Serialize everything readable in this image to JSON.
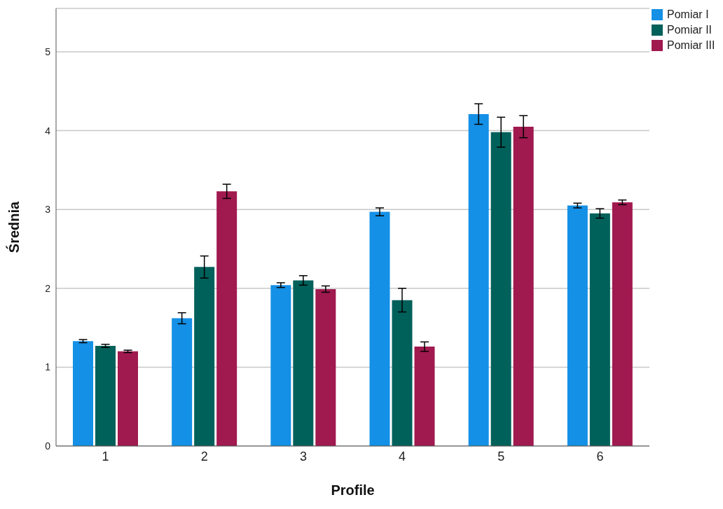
{
  "chart_data": {
    "type": "bar",
    "xlabel": "Profile",
    "ylabel": "Średnia",
    "categories": [
      "1",
      "2",
      "3",
      "4",
      "5",
      "6"
    ],
    "series": [
      {
        "name": "Pomiar I",
        "color": "#1490e6",
        "values": [
          1.33,
          1.62,
          2.04,
          2.97,
          4.21,
          3.05
        ],
        "errors": [
          0.02,
          0.07,
          0.03,
          0.05,
          0.13,
          0.03
        ]
      },
      {
        "name": "Pomiar II",
        "color": "#00605a",
        "values": [
          1.27,
          2.27,
          2.1,
          1.85,
          3.98,
          2.95
        ],
        "errors": [
          0.02,
          0.14,
          0.06,
          0.15,
          0.19,
          0.06
        ]
      },
      {
        "name": "Pomiar III",
        "color": "#a0194f",
        "values": [
          1.2,
          3.23,
          1.99,
          1.26,
          4.05,
          3.09
        ],
        "errors": [
          0.015,
          0.09,
          0.04,
          0.06,
          0.14,
          0.03
        ]
      }
    ],
    "ylim": [
      0,
      5.55
    ],
    "yticks": [
      0,
      1,
      2,
      3,
      4,
      5
    ],
    "grid": "y",
    "legend": "top right"
  }
}
